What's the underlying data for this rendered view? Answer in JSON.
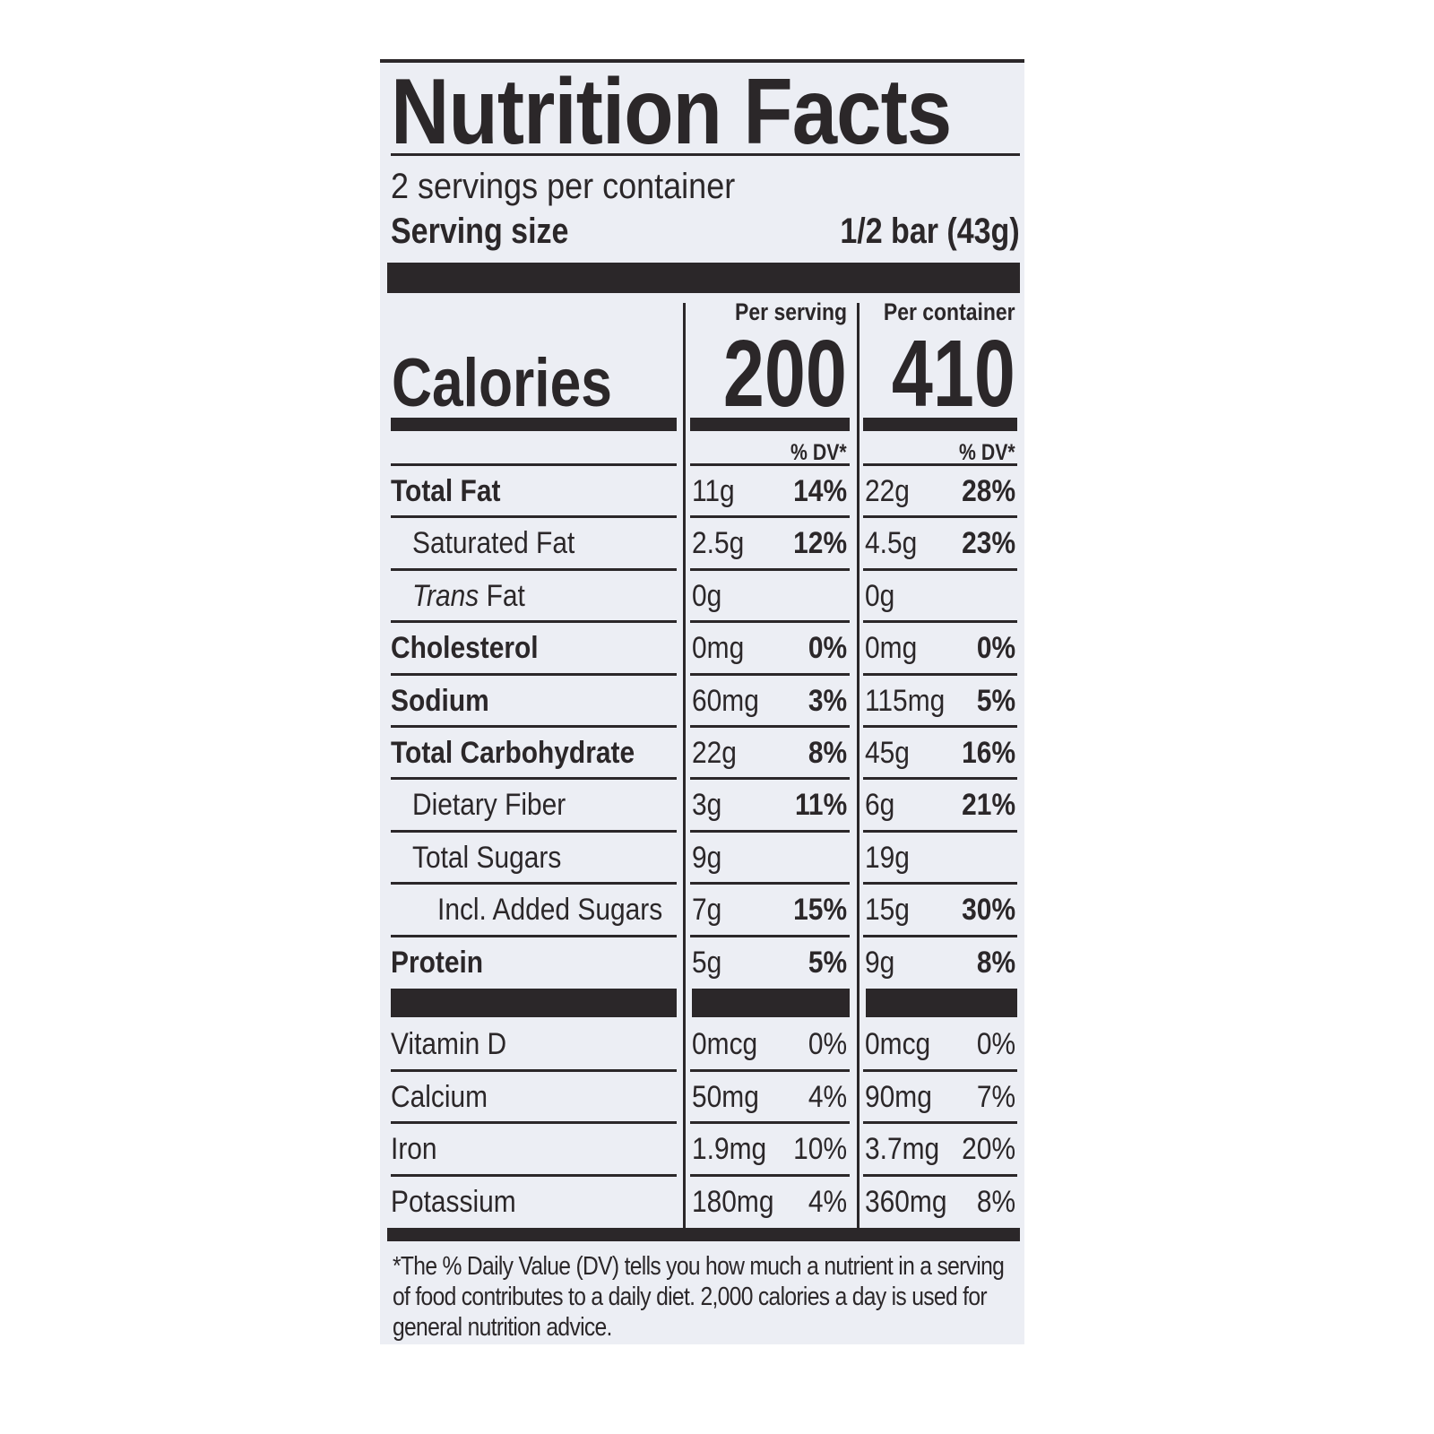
{
  "label": {
    "title": "Nutrition Facts",
    "servings_per_container": "2 servings per container",
    "serving_size_label": "Serving size",
    "serving_size_value": "1/2 bar (43g)",
    "per_serving_header": "Per serving",
    "per_container_header": "Per container",
    "calories_label": "Calories",
    "calories_per_serving": "200",
    "calories_per_container": "410",
    "dv_header": "% DV*",
    "nutrients": [
      {
        "name": "Total Fat",
        "style": "bold",
        "indent": 0,
        "serving": "11g",
        "serving_dv": "14%",
        "container": "22g",
        "container_dv": "28%"
      },
      {
        "name": "Saturated Fat",
        "style": "normal",
        "indent": 1,
        "serving": "2.5g",
        "serving_dv": "12%",
        "container": "4.5g",
        "container_dv": "23%"
      },
      {
        "name": "Trans Fat",
        "style": "trans",
        "indent": 1,
        "serving": "0g",
        "serving_dv": "",
        "container": "0g",
        "container_dv": ""
      },
      {
        "name": "Cholesterol",
        "style": "bold",
        "indent": 0,
        "serving": "0mg",
        "serving_dv": "0%",
        "container": "0mg",
        "container_dv": "0%"
      },
      {
        "name": "Sodium",
        "style": "bold",
        "indent": 0,
        "serving": "60mg",
        "serving_dv": "3%",
        "container": "115mg",
        "container_dv": "5%"
      },
      {
        "name": "Total Carbohydrate",
        "style": "bold",
        "indent": 0,
        "serving": "22g",
        "serving_dv": "8%",
        "container": "45g",
        "container_dv": "16%"
      },
      {
        "name": "Dietary Fiber",
        "style": "normal",
        "indent": 1,
        "serving": "3g",
        "serving_dv": "11%",
        "container": "6g",
        "container_dv": "21%"
      },
      {
        "name": "Total Sugars",
        "style": "normal",
        "indent": 1,
        "serving": "9g",
        "serving_dv": "",
        "container": "19g",
        "container_dv": ""
      },
      {
        "name": "Incl. Added Sugars",
        "style": "normal",
        "indent": 2,
        "serving": "7g",
        "serving_dv": "15%",
        "container": "15g",
        "container_dv": "30%"
      },
      {
        "name": "Protein",
        "style": "bold",
        "indent": 0,
        "serving": "5g",
        "serving_dv": "5%",
        "container": "9g",
        "container_dv": "8%"
      }
    ],
    "vitamins": [
      {
        "name": "Vitamin D",
        "serving": "0mcg",
        "serving_dv": "0%",
        "container": "0mcg",
        "container_dv": "0%"
      },
      {
        "name": "Calcium",
        "serving": "50mg",
        "serving_dv": "4%",
        "container": "90mg",
        "container_dv": "7%"
      },
      {
        "name": "Iron",
        "serving": "1.9mg",
        "serving_dv": "10%",
        "container": "3.7mg",
        "container_dv": "20%"
      },
      {
        "name": "Potassium",
        "serving": "180mg",
        "serving_dv": "4%",
        "container": "360mg",
        "container_dv": "8%"
      }
    ],
    "footnote": "*The % Daily Value (DV) tells you how much a nutrient in a serving of food contributes to a daily diet. 2,000 calories a day is used for general nutrition advice."
  },
  "colors": {
    "ink": "#2b2729",
    "background": "#eceef4"
  }
}
